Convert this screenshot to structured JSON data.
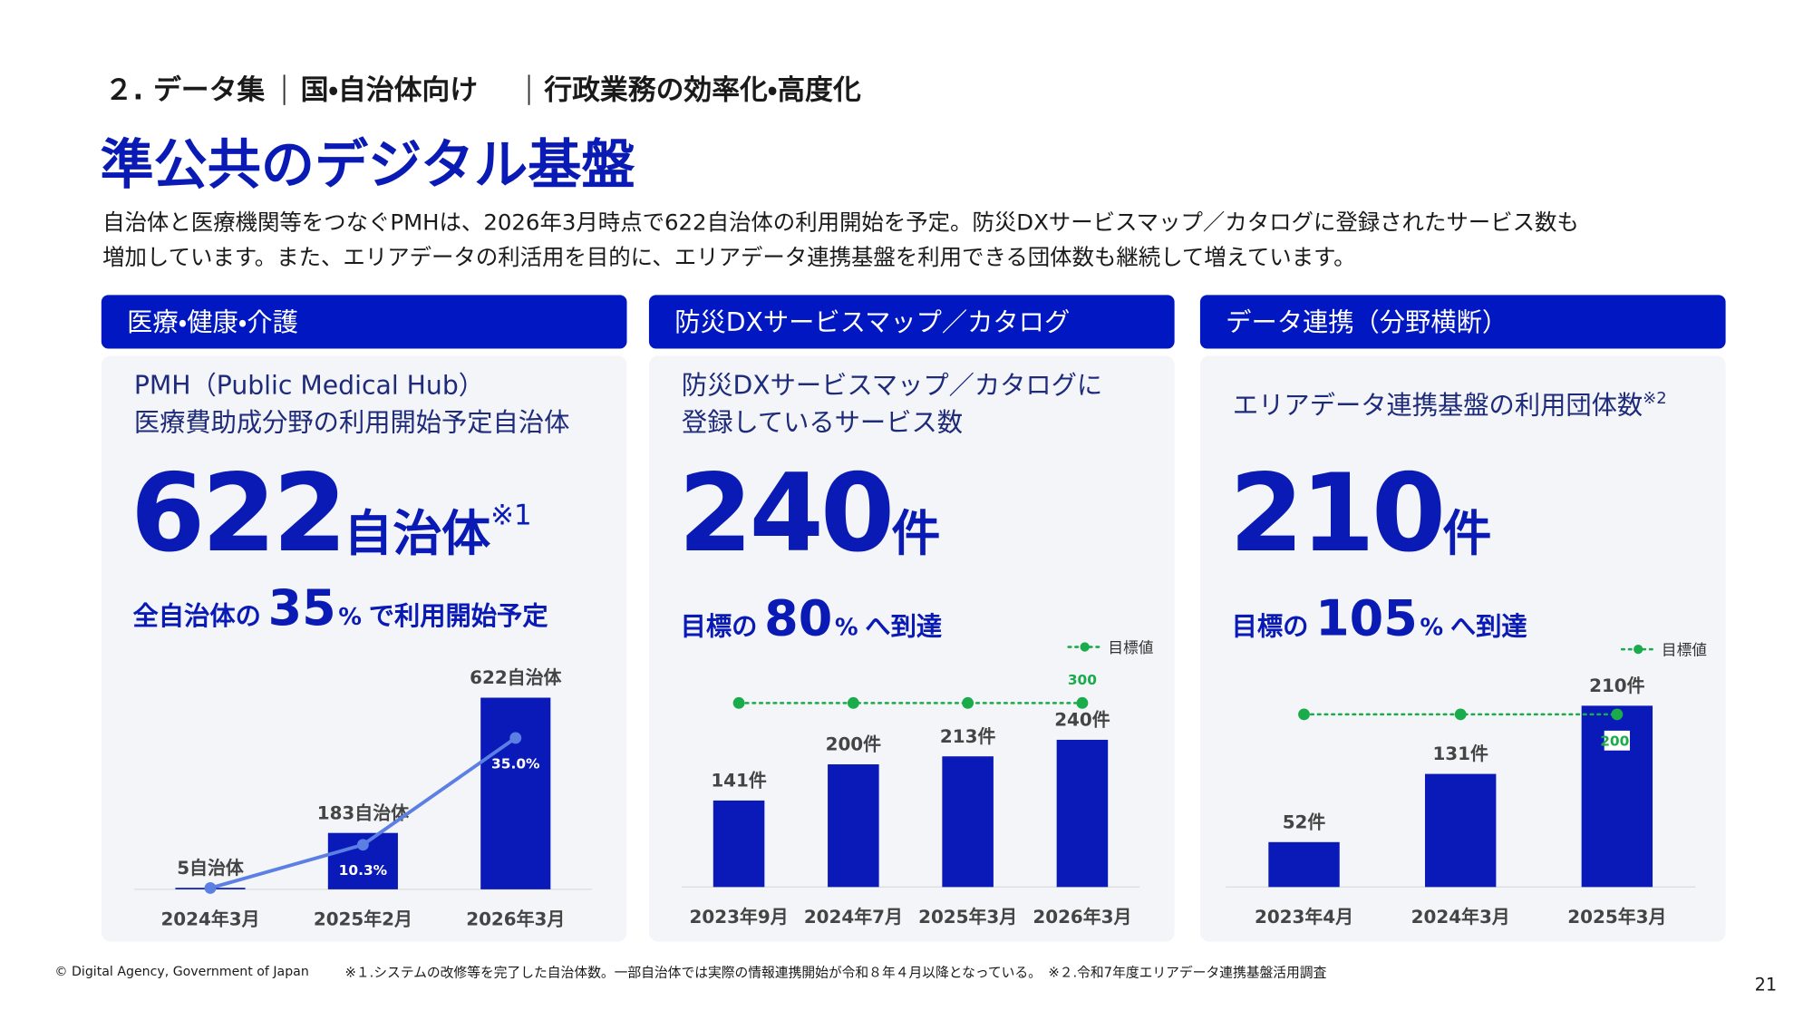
{
  "header": {
    "section": "２. データ集",
    "audience": "国・自治体向け",
    "theme": "行政業務の効率化・高度化",
    "title": "準公共のデジタル基盤",
    "lead": [
      "自治体と医療機関等をつなぐPMHは、2026年3月時点で622自治体の利用開始を予定。防災DXサービスマップ／カタログに登録されたサービス数も",
      "増加しています。また、エリアデータの利活用を目的に、エリアデータ連携基盤を利用できる団体数も継続して増えています。"
    ]
  },
  "panels": [
    {
      "tab": "医療・健康・介護",
      "subtitle": [
        "PMH（Public Medical Hub）",
        "医療費助成分野の利用開始予定自治体"
      ],
      "figure": 622,
      "unit": "自治体",
      "note": "※1",
      "rate_prefix": "全自治体の",
      "rate": 35,
      "rate_unit": "%",
      "rate_suffix": "で利用開始予定"
    },
    {
      "tab": "防災DXサービスマップ／カタログ",
      "subtitle": [
        "防災DXサービスマップ／カタログに",
        "登録しているサービス数"
      ],
      "figure": 240,
      "unit": "件",
      "rate_prefix": "目標の",
      "rate": 80,
      "rate_unit": "%",
      "rate_suffix": "へ到達"
    },
    {
      "tab": "データ連携（分野横断）",
      "subtitle": [
        "エリアデータ連携基盤の利用団体数"
      ],
      "subtitle_note": "※2",
      "figure": 210,
      "unit": "件",
      "rate_prefix": "目標の",
      "rate": 105,
      "rate_unit": "%",
      "rate_suffix": "へ到達"
    }
  ],
  "chart_data": [
    {
      "type": "bar",
      "categories": [
        "2024年3月",
        "2025年2月",
        "2026年3月"
      ],
      "ylim": [
        0,
        730
      ],
      "y2lim": [
        0,
        52
      ],
      "series": [
        {
          "color": "#0a1ab8",
          "values": [
            5,
            183,
            622
          ],
          "value_labels": [
            "5自治体",
            "183自治体",
            "622自治体"
          ]
        },
        {
          "type": "line",
          "axis": "y2",
          "color": "#5b7fe3",
          "values": [
            0.3,
            10.3,
            35.0
          ],
          "value_labels": [
            null,
            "10.3%",
            "35.0%"
          ]
        }
      ]
    },
    {
      "type": "bar",
      "categories": [
        "2023年9月",
        "2024年7月",
        "2025年3月",
        "2026年3月"
      ],
      "ylim": [
        0,
        380
      ],
      "legend": "top-right",
      "series": [
        {
          "color": "#0a1ab8",
          "values": [
            141,
            200,
            213,
            240
          ],
          "value_labels": [
            "141件",
            "200件",
            "213件",
            "240件"
          ]
        },
        {
          "type": "line",
          "style": "dotted",
          "name": "目標値",
          "color": "#1aab4b",
          "values": [
            300,
            300,
            300,
            300
          ],
          "labeled_points": [
            3
          ]
        }
      ]
    },
    {
      "type": "bar",
      "categories": [
        "2023年4月",
        "2024年3月",
        "2025年3月"
      ],
      "ylim": [
        0,
        270
      ],
      "legend": "top-right",
      "series": [
        {
          "color": "#0a1ab8",
          "values": [
            52,
            131,
            210
          ],
          "value_labels": [
            "52件",
            "131件",
            "210件"
          ]
        },
        {
          "type": "line",
          "style": "dotted",
          "name": "目標値",
          "color": "#1aab4b",
          "values": [
            200,
            200,
            200
          ],
          "labeled_points": [
            2
          ]
        }
      ]
    }
  ],
  "footer": {
    "copyright": "© Digital Agency, Government of Japan",
    "notes": "※１.システムの改修等を完了した自治体数。一部自治体では実際の情報連携開始が令和８年４月以降となっている。　※２.令和7年度エリアデータ連携基盤活用調査",
    "page": 21
  }
}
